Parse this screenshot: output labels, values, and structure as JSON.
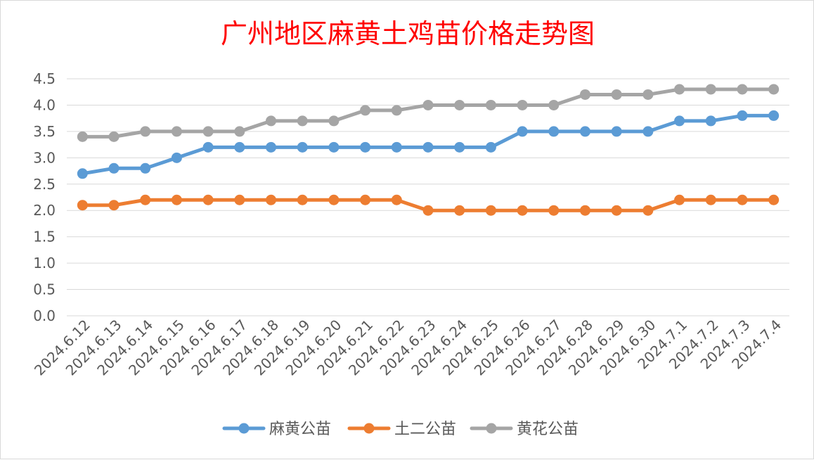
{
  "chart_data": {
    "type": "line",
    "title": "广州地区麻黄土鸡苗价格走势图",
    "xlabel": "",
    "ylabel": "",
    "ylim": [
      0,
      4.5
    ],
    "yticks": [
      "0.0",
      "0.5",
      "1.0",
      "1.5",
      "2.0",
      "2.5",
      "3.0",
      "3.5",
      "4.0",
      "4.5"
    ],
    "grid": true,
    "legend_position": "bottom",
    "categories": [
      "2024.6.12",
      "2024.6.13",
      "2024.6.14",
      "2024.6.15",
      "2024.6.16",
      "2024.6.17",
      "2024.6.18",
      "2024.6.19",
      "2024.6.20",
      "2024.6.21",
      "2024.6.22",
      "2024.6.23",
      "2024.6.24",
      "2024.6.25",
      "2024.6.26",
      "2024.6.27",
      "2024.6.28",
      "2024.6.29",
      "2024.6.30",
      "2024.7.1",
      "2024.7.2",
      "2024.7.3",
      "2024.7.4"
    ],
    "series": [
      {
        "name": "麻黄公苗",
        "color": "#5b9bd5",
        "values": [
          2.7,
          2.8,
          2.8,
          3.0,
          3.2,
          3.2,
          3.2,
          3.2,
          3.2,
          3.2,
          3.2,
          3.2,
          3.2,
          3.2,
          3.5,
          3.5,
          3.5,
          3.5,
          3.5,
          3.7,
          3.7,
          3.8,
          3.8
        ]
      },
      {
        "name": "土二公苗",
        "color": "#ed7d31",
        "values": [
          2.1,
          2.1,
          2.2,
          2.2,
          2.2,
          2.2,
          2.2,
          2.2,
          2.2,
          2.2,
          2.2,
          2.0,
          2.0,
          2.0,
          2.0,
          2.0,
          2.0,
          2.0,
          2.0,
          2.2,
          2.2,
          2.2,
          2.2
        ]
      },
      {
        "name": "黄花公苗",
        "color": "#a5a5a5",
        "values": [
          3.4,
          3.4,
          3.5,
          3.5,
          3.5,
          3.5,
          3.7,
          3.7,
          3.7,
          3.9,
          3.9,
          4.0,
          4.0,
          4.0,
          4.0,
          4.0,
          4.2,
          4.2,
          4.2,
          4.3,
          4.3,
          4.3,
          4.3
        ]
      }
    ]
  }
}
